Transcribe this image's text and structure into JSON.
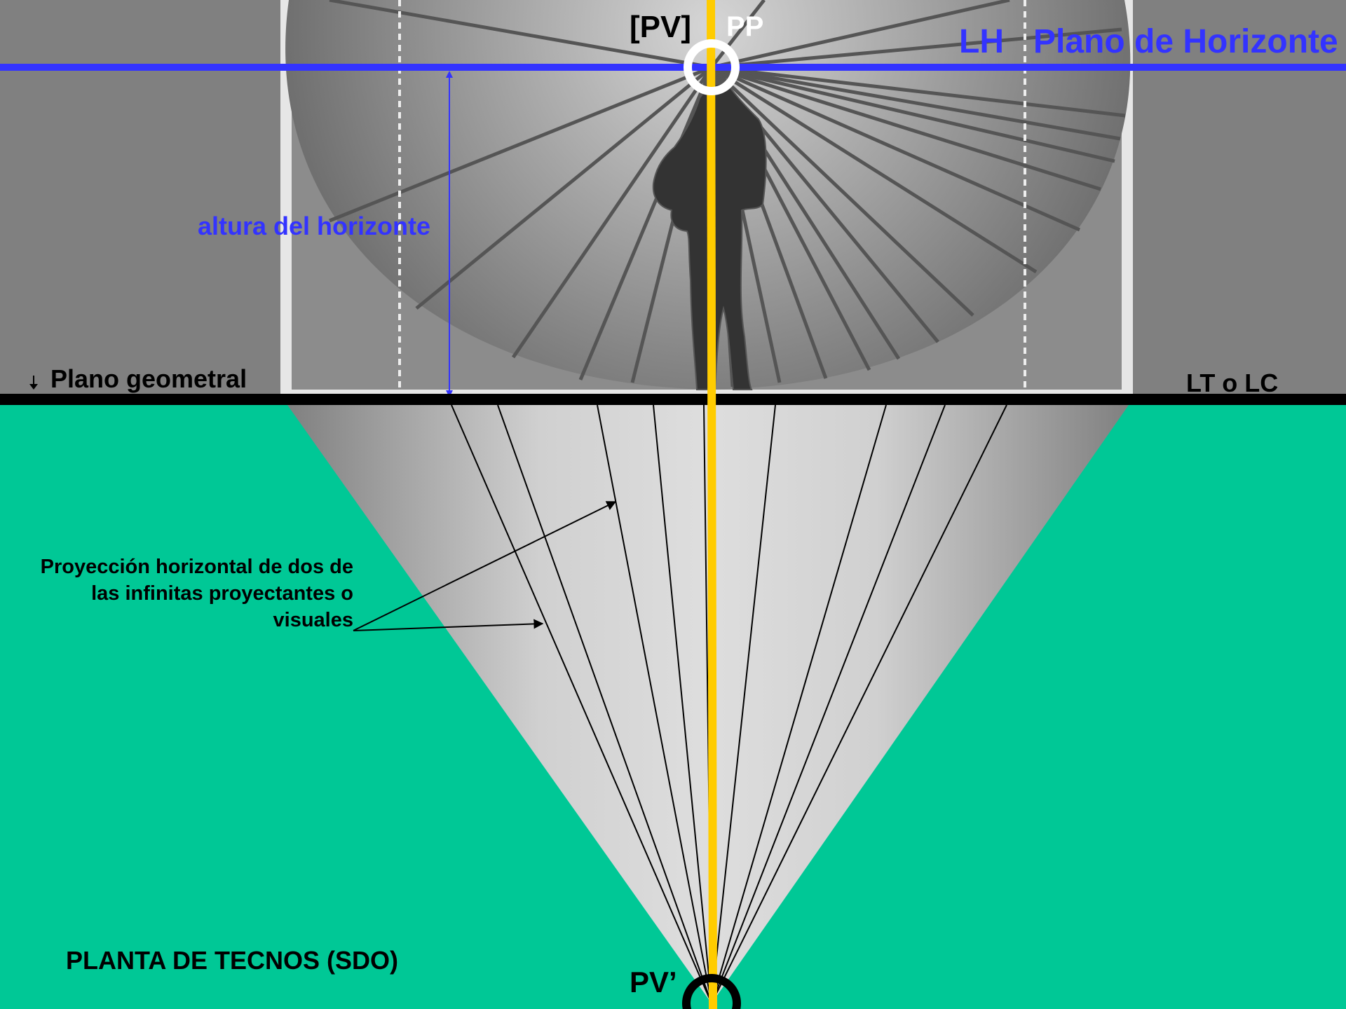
{
  "labels": {
    "pv_top": "[PV]",
    "pp": "PP",
    "lh": "LH",
    "plano_horizonte": "Plano de Horizonte",
    "altura_horizonte": "altura del horizonte",
    "plano_geometral": "Plano geometral",
    "lt_lc": "LT o LC",
    "proyeccion_note": "Proyección horizontal de dos de las infinitas proyectantes o visuales",
    "planta": "PLANTA DE TECNOS  (SDO)",
    "pv_prime": "PV’"
  },
  "colors": {
    "horizon_blue": "#3333ff",
    "ground_green": "#00c896",
    "central_ray_yellow": "#ffcc00",
    "ground_line_black": "#000000",
    "wall_gray": "#808080",
    "silhouette": "#333333"
  },
  "icons": {
    "viewer_silhouette": "person-silhouette-icon",
    "viewpoint_ring": "ring-icon"
  }
}
